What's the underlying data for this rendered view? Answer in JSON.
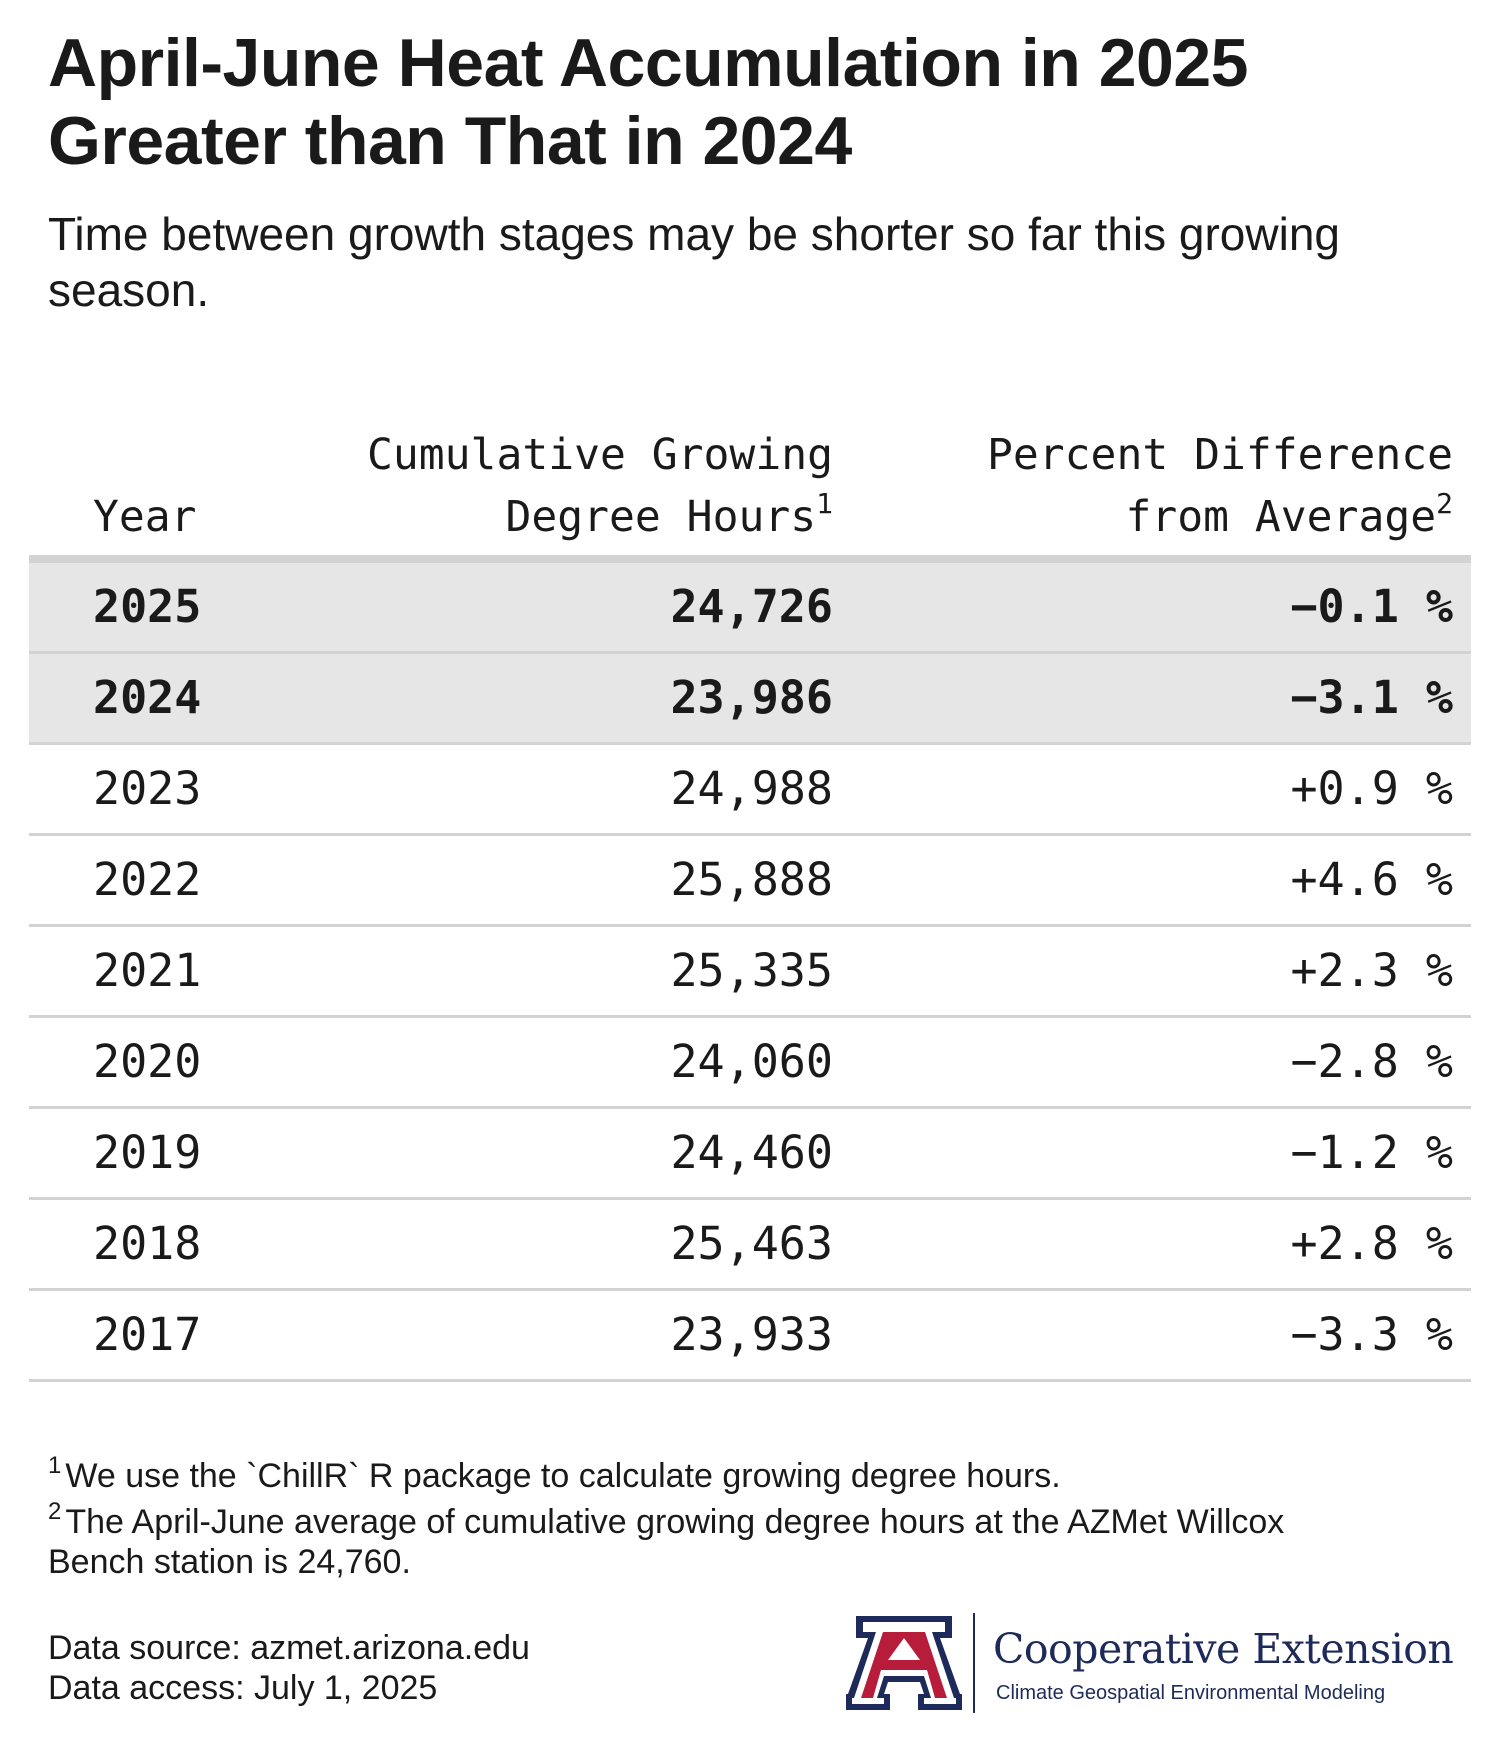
{
  "title": "April-June Heat Accumulation in 2025 Greater than That in 2024",
  "subtitle": "Time between growth stages may be shorter so far this growing season.",
  "table": {
    "headers": {
      "year": "Year",
      "gdh_line1": "Cumulative Growing",
      "gdh_line2": "Degree Hours",
      "gdh_sup": "1",
      "pct_line1": "Percent Difference",
      "pct_line2": "from Average",
      "pct_sup": "2"
    },
    "rows": [
      {
        "year": "2025",
        "gdh": "24,726",
        "pct": "−0.1 %",
        "highlight": true
      },
      {
        "year": "2024",
        "gdh": "23,986",
        "pct": "−3.1 %",
        "highlight": true
      },
      {
        "year": "2023",
        "gdh": "24,988",
        "pct": "+0.9 %",
        "highlight": false
      },
      {
        "year": "2022",
        "gdh": "25,888",
        "pct": "+4.6 %",
        "highlight": false
      },
      {
        "year": "2021",
        "gdh": "25,335",
        "pct": "+2.3 %",
        "highlight": false
      },
      {
        "year": "2020",
        "gdh": "24,060",
        "pct": "−2.8 %",
        "highlight": false
      },
      {
        "year": "2019",
        "gdh": "24,460",
        "pct": "−1.2 %",
        "highlight": false
      },
      {
        "year": "2018",
        "gdh": "25,463",
        "pct": "+2.8 %",
        "highlight": false
      },
      {
        "year": "2017",
        "gdh": "23,933",
        "pct": "−3.3 %",
        "highlight": false
      }
    ]
  },
  "chart_data": {
    "type": "table",
    "title": "April-June Heat Accumulation in 2025 Greater than That in 2024",
    "columns": [
      "Year",
      "Cumulative Growing Degree Hours",
      "Percent Difference from Average"
    ],
    "years": [
      2025,
      2024,
      2023,
      2022,
      2021,
      2020,
      2019,
      2018,
      2017
    ],
    "cumulative_gdh": [
      24726,
      23986,
      24988,
      25888,
      25335,
      24060,
      24460,
      25463,
      23933
    ],
    "pct_diff_from_average": [
      -0.1,
      -3.1,
      0.9,
      4.6,
      2.3,
      -2.8,
      -1.2,
      2.8,
      -3.3
    ],
    "highlighted_years": [
      2025,
      2024
    ]
  },
  "footnotes": {
    "fn1_mark": "1",
    "fn1": "We use the `ChillR` R package to calculate growing degree hours.",
    "fn2_mark": "2",
    "fn2": "The April-June average of cumulative growing degree hours at the AZMet Willcox Bench station is 24,760."
  },
  "source": {
    "line1": "Data source: azmet.arizona.edu",
    "line2": "Data access: July 1, 2025"
  },
  "brand": {
    "logo_letter": "A",
    "name": "Cooperative Extension",
    "subtitle": "Climate Geospatial Environmental Modeling",
    "navy": "#1e2a5a",
    "red": "#b71c3a"
  },
  "colors": {
    "highlight_row": "#e5e6e5",
    "rule": "#d3d3d3",
    "text": "#1a1a1a"
  }
}
